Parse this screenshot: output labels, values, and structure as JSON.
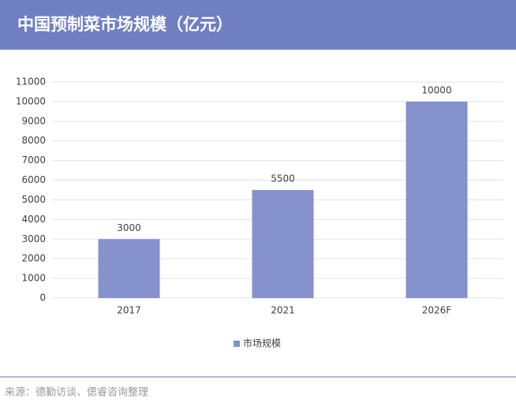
{
  "chart_data": {
    "type": "bar",
    "title": "中国预制菜市场规模（亿元）",
    "categories": [
      "2017",
      "2021",
      "2026F"
    ],
    "series": [
      {
        "name": "市场规模",
        "color": "#8591cc",
        "values": [
          3000,
          5500,
          10000
        ]
      }
    ],
    "ylim": [
      0,
      11000
    ],
    "yticks": [
      0,
      1000,
      2000,
      3000,
      4000,
      5000,
      6000,
      7000,
      8000,
      9000,
      10000,
      11000
    ],
    "grid": true,
    "legend": "bottom",
    "source": "来源：德勤访谈、偲睿咨询整理"
  }
}
